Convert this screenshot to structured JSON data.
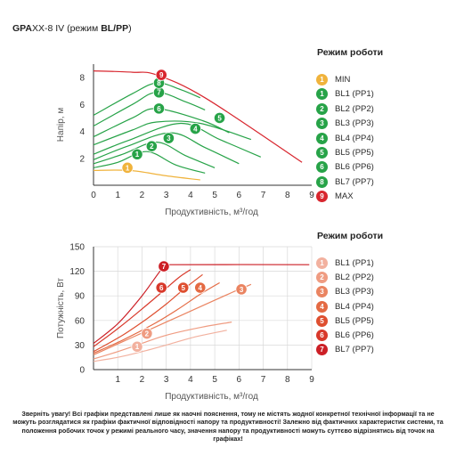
{
  "title": {
    "prefix": "GPA",
    "xx": "XX-8 IV",
    "suffix": "(режим ",
    "mode": "BL/PP",
    "close": ")"
  },
  "legend_top": {
    "title": "Режим роботи",
    "items": [
      {
        "num": "1",
        "label": "MIN",
        "color": "#f0b33c"
      },
      {
        "num": "1",
        "label": "BL1 (PP1)",
        "color": "#27a348"
      },
      {
        "num": "2",
        "label": "BL2 (PP2)",
        "color": "#27a348"
      },
      {
        "num": "3",
        "label": "BL3 (PP3)",
        "color": "#27a348"
      },
      {
        "num": "4",
        "label": "BL4 (PP4)",
        "color": "#27a348"
      },
      {
        "num": "5",
        "label": "BL5 (PP5)",
        "color": "#27a348"
      },
      {
        "num": "6",
        "label": "BL6 (PP6)",
        "color": "#27a348"
      },
      {
        "num": "8",
        "label": "BL7 (PP7)",
        "color": "#27a348"
      },
      {
        "num": "9",
        "label": "MAX",
        "color": "#d8262e"
      }
    ]
  },
  "legend_bottom": {
    "title": "Режим роботи",
    "items": [
      {
        "num": "1",
        "label": "BL1 (PP1)",
        "color": "#f2b19f"
      },
      {
        "num": "2",
        "label": "BL2 (PP2)",
        "color": "#ef9c82"
      },
      {
        "num": "3",
        "label": "BL3 (PP3)",
        "color": "#ea8461"
      },
      {
        "num": "4",
        "label": "BL4 (PP4)",
        "color": "#e46a43"
      },
      {
        "num": "5",
        "label": "BL5 (PP5)",
        "color": "#de4f30"
      },
      {
        "num": "6",
        "label": "BL6 (PP6)",
        "color": "#d8382a"
      },
      {
        "num": "7",
        "label": "BL7 (PP7)",
        "color": "#cc1f26"
      }
    ]
  },
  "disclaimer": "Зверніть увагу! Всі графіки представлені лише як наочні пояснення, тому не містять жодної конкретної технічної інформації та не можуть розглядатися як графіки фактичної відповідності напору та продуктивності! Залежно від фактичних характеристик системи, та положення робочих точок у режимі реального часу, значення напору та продуктивності можуть суттєво відрізнятись від точок на графіках!",
  "chart_data": [
    {
      "type": "line",
      "xlabel": "Продуктивність, м³/год",
      "ylabel": "Напір, м",
      "xlim": [
        0,
        9
      ],
      "ylim": [
        0,
        9
      ],
      "xticks": [
        0,
        1,
        2,
        3,
        4,
        5,
        6,
        7,
        8,
        9
      ],
      "yticks": [
        2,
        4,
        6,
        8
      ],
      "grid": false,
      "series": [
        {
          "label": "1",
          "color": "#f0b33c",
          "marker_x": 1.4,
          "marker_y": 1.3,
          "points": [
            [
              0,
              1.1
            ],
            [
              1.5,
              1.1
            ],
            [
              3,
              0.7
            ],
            [
              4.4,
              0.4
            ]
          ]
        },
        {
          "label": "1",
          "color": "#27a348",
          "marker_x": 1.8,
          "marker_y": 2.3,
          "points": [
            [
              0,
              1.3
            ],
            [
              1,
              1.7
            ],
            [
              2.2,
              2.5
            ],
            [
              3.4,
              1.5
            ],
            [
              4.6,
              0.9
            ]
          ]
        },
        {
          "label": "2",
          "color": "#27a348",
          "marker_x": 2.4,
          "marker_y": 2.9,
          "points": [
            [
              0,
              1.6
            ],
            [
              1.2,
              2.3
            ],
            [
              2.6,
              3.2
            ],
            [
              3.8,
              2.2
            ],
            [
              5,
              1.3
            ]
          ]
        },
        {
          "label": "3",
          "color": "#27a348",
          "marker_x": 3.1,
          "marker_y": 3.5,
          "points": [
            [
              0,
              1.9
            ],
            [
              1.4,
              2.9
            ],
            [
              3.2,
              3.9
            ],
            [
              4.6,
              2.8
            ],
            [
              6,
              1.6
            ]
          ]
        },
        {
          "label": "4",
          "color": "#27a348",
          "marker_x": 4.2,
          "marker_y": 4.2,
          "points": [
            [
              0,
              2.3
            ],
            [
              1.4,
              3.3
            ],
            [
              3.6,
              4.6
            ],
            [
              5.2,
              3.4
            ],
            [
              6.9,
              2.1
            ]
          ]
        },
        {
          "label": "5",
          "color": "#27a348",
          "marker_x": 5.2,
          "marker_y": 5.0,
          "points": [
            [
              0,
              3.0
            ],
            [
              1.6,
              4.1
            ],
            [
              2.6,
              4.7
            ],
            [
              4.4,
              4.6
            ],
            [
              6.5,
              3.4
            ]
          ]
        },
        {
          "label": "6",
          "color": "#27a348",
          "marker_x": 2.7,
          "marker_y": 5.7,
          "points": [
            [
              0,
              3.6
            ],
            [
              1.6,
              5.0
            ],
            [
              2.6,
              5.7
            ],
            [
              4.5,
              4.8
            ],
            [
              5.6,
              3.9
            ]
          ]
        },
        {
          "label": "7",
          "color": "#27a348",
          "marker_x": 2.7,
          "marker_y": 6.9,
          "points": [
            [
              0,
              4.4
            ],
            [
              1.6,
              6.0
            ],
            [
              2.6,
              6.9
            ],
            [
              3.8,
              6.2
            ],
            [
              4.6,
              5.6
            ]
          ]
        },
        {
          "label": "8",
          "color": "#27a348",
          "marker_x": 2.7,
          "marker_y": 7.6,
          "points": [
            [
              0,
              5.2
            ],
            [
              1.6,
              6.8
            ],
            [
              2.6,
              7.6
            ],
            [
              3.6,
              7.1
            ],
            [
              4.4,
              6.5
            ]
          ]
        },
        {
          "label": "9",
          "color": "#d8262e",
          "marker_x": 2.8,
          "marker_y": 8.2,
          "points": [
            [
              0,
              8.5
            ],
            [
              1.6,
              8.4
            ],
            [
              2.6,
              8.2
            ],
            [
              4.6,
              6.5
            ],
            [
              8.6,
              1.7
            ]
          ]
        }
      ]
    },
    {
      "type": "line",
      "xlabel": "Продуктивність, м³/год",
      "ylabel": "Потужність, Вт",
      "xlim": [
        0,
        9
      ],
      "ylim": [
        0,
        150
      ],
      "xticks": [
        1,
        2,
        3,
        4,
        5,
        6,
        7,
        8,
        9
      ],
      "yticks": [
        0,
        30,
        60,
        90,
        120,
        150
      ],
      "grid": true,
      "series": [
        {
          "label": "1",
          "color": "#f2b19f",
          "marker_x": 1.8,
          "marker_y": 28,
          "points": [
            [
              0,
              10
            ],
            [
              1,
              15
            ],
            [
              2,
              22
            ],
            [
              3,
              30
            ],
            [
              4.2,
              40
            ],
            [
              5.5,
              48
            ]
          ]
        },
        {
          "label": "2",
          "color": "#ef9c82",
          "marker_x": 2.2,
          "marker_y": 44,
          "points": [
            [
              0,
              13
            ],
            [
              1,
              22
            ],
            [
              2,
              32
            ],
            [
              3,
              42
            ],
            [
              4.5,
              52
            ],
            [
              5.7,
              58
            ]
          ]
        },
        {
          "label": "3",
          "color": "#ea8461",
          "marker_x": 6.1,
          "marker_y": 98,
          "points": [
            [
              0,
              18
            ],
            [
              1.5,
              38
            ],
            [
              3,
              58
            ],
            [
              4.5,
              78
            ],
            [
              5.7,
              94
            ],
            [
              6.5,
              104
            ]
          ]
        },
        {
          "label": "4",
          "color": "#e46a43",
          "marker_x": 4.4,
          "marker_y": 100,
          "points": [
            [
              0,
              20
            ],
            [
              1.2,
              36
            ],
            [
              2.5,
              56
            ],
            [
              3.5,
              74
            ],
            [
              4.4,
              92
            ],
            [
              5.2,
              106
            ]
          ]
        },
        {
          "label": "5",
          "color": "#de4f30",
          "marker_x": 3.7,
          "marker_y": 100,
          "points": [
            [
              0,
              22
            ],
            [
              1.2,
              42
            ],
            [
              2.2,
              62
            ],
            [
              3,
              80
            ],
            [
              3.8,
              100
            ],
            [
              4.5,
              116
            ]
          ]
        },
        {
          "label": "6",
          "color": "#d8382a",
          "marker_x": 2.8,
          "marker_y": 100,
          "points": [
            [
              0,
              28
            ],
            [
              1,
              50
            ],
            [
              2,
              74
            ],
            [
              2.8,
              94
            ],
            [
              3.5,
              112
            ],
            [
              4,
              122
            ]
          ]
        },
        {
          "label": "7",
          "color": "#cc1f26",
          "marker_x": 2.9,
          "marker_y": 126,
          "points": [
            [
              0,
              32
            ],
            [
              1,
              56
            ],
            [
              2,
              90
            ],
            [
              2.9,
              126
            ],
            [
              3.2,
              128
            ],
            [
              8.9,
              128
            ]
          ]
        }
      ]
    }
  ]
}
